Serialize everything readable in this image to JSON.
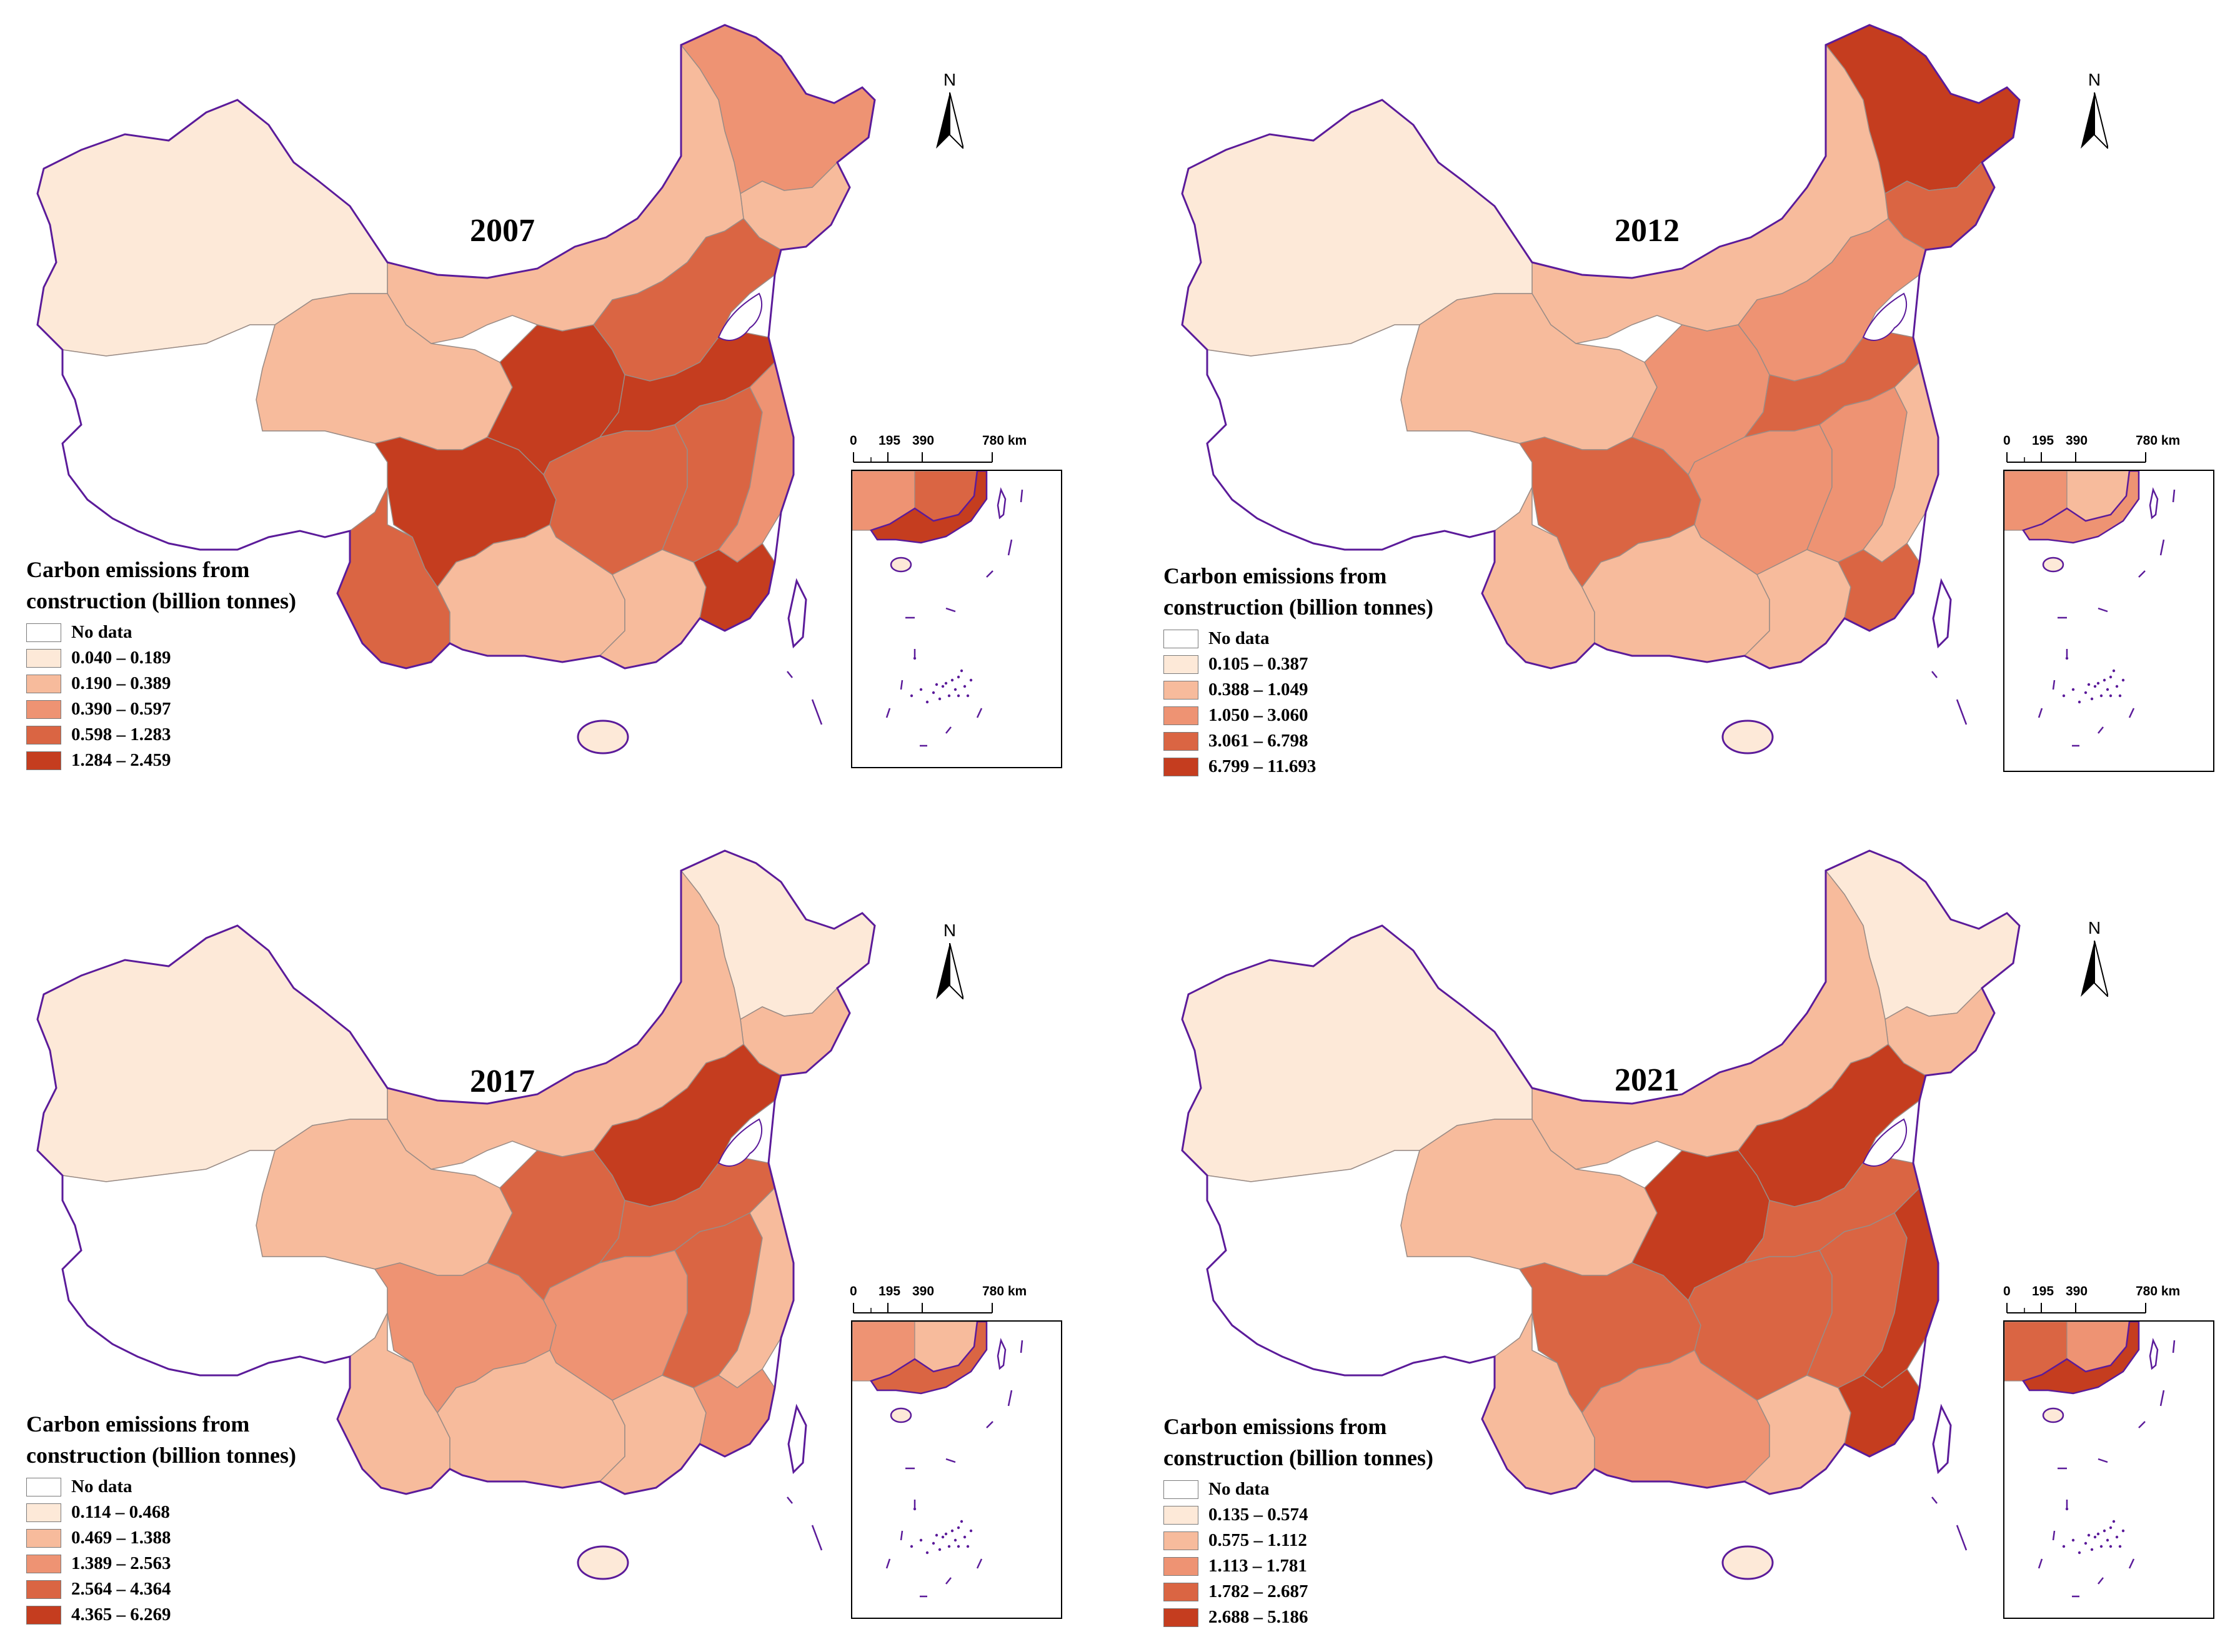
{
  "north_label": "N",
  "scalebar": [
    "0",
    "195",
    "390",
    "780 km"
  ],
  "legend_title_line1": "Carbon emissions from",
  "legend_title_line2": "construction (billion tonnes)",
  "no_data_label": "No data",
  "colors": {
    "no_data": "#ffffff",
    "class1": "#fde9d8",
    "class2": "#f7bb9c",
    "class3": "#ee9373",
    "class4": "#da6543",
    "class5": "#c53d1f",
    "border": "#5b1b9a",
    "internal": "#9a8c86"
  },
  "panels": [
    {
      "year": "2007",
      "classes": [
        "0.040 – 0.189",
        "0.190 – 0.389",
        "0.390 – 0.597",
        "0.598 – 1.283",
        "1.284 – 2.459"
      ]
    },
    {
      "year": "2012",
      "classes": [
        "0.105 – 0.387",
        "0.388 – 1.049",
        "1.050 – 3.060",
        "3.061 – 6.798",
        "6.799 – 11.693"
      ]
    },
    {
      "year": "2017",
      "classes": [
        "0.114 – 0.468",
        "0.469 – 1.388",
        "1.389 – 2.563",
        "2.564 – 4.364",
        "4.365 – 6.269"
      ]
    },
    {
      "year": "2021",
      "classes": [
        "0.135 – 0.574",
        "0.575 – 1.112",
        "1.113 – 1.781",
        "1.782 – 2.687",
        "2.688 – 5.186"
      ]
    }
  ]
}
